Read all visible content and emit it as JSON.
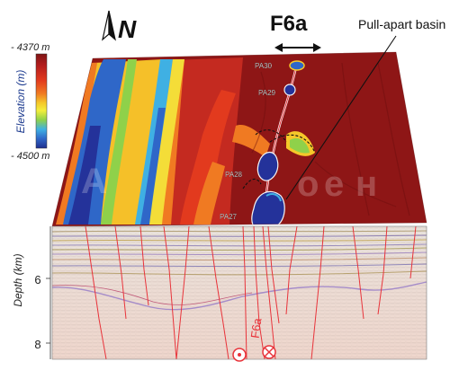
{
  "north_label": "N",
  "fault_label": "F6a",
  "basin_label": "Pull-apart basin",
  "legend": {
    "title": "Elevation (m)",
    "top_value": "- 4370 m",
    "bottom_value": "- 4500 m",
    "colors": [
      "#7f1414",
      "#b31d1d",
      "#e23a1e",
      "#f07a22",
      "#f5c82a",
      "#f4ee3c",
      "#8fd14a",
      "#3fb0e3",
      "#2f67c8",
      "#1f2f8f"
    ]
  },
  "basin_labels": [
    "PA30",
    "PA29",
    "PA28",
    "PA27"
  ],
  "depth_axis": {
    "title": "Depth (km)",
    "ticks": [
      "6",
      "8"
    ]
  },
  "section_fault_label": "F6a",
  "colors": {
    "high": "#8e1616",
    "fault": "#e8333a",
    "deep": "#24329a"
  }
}
